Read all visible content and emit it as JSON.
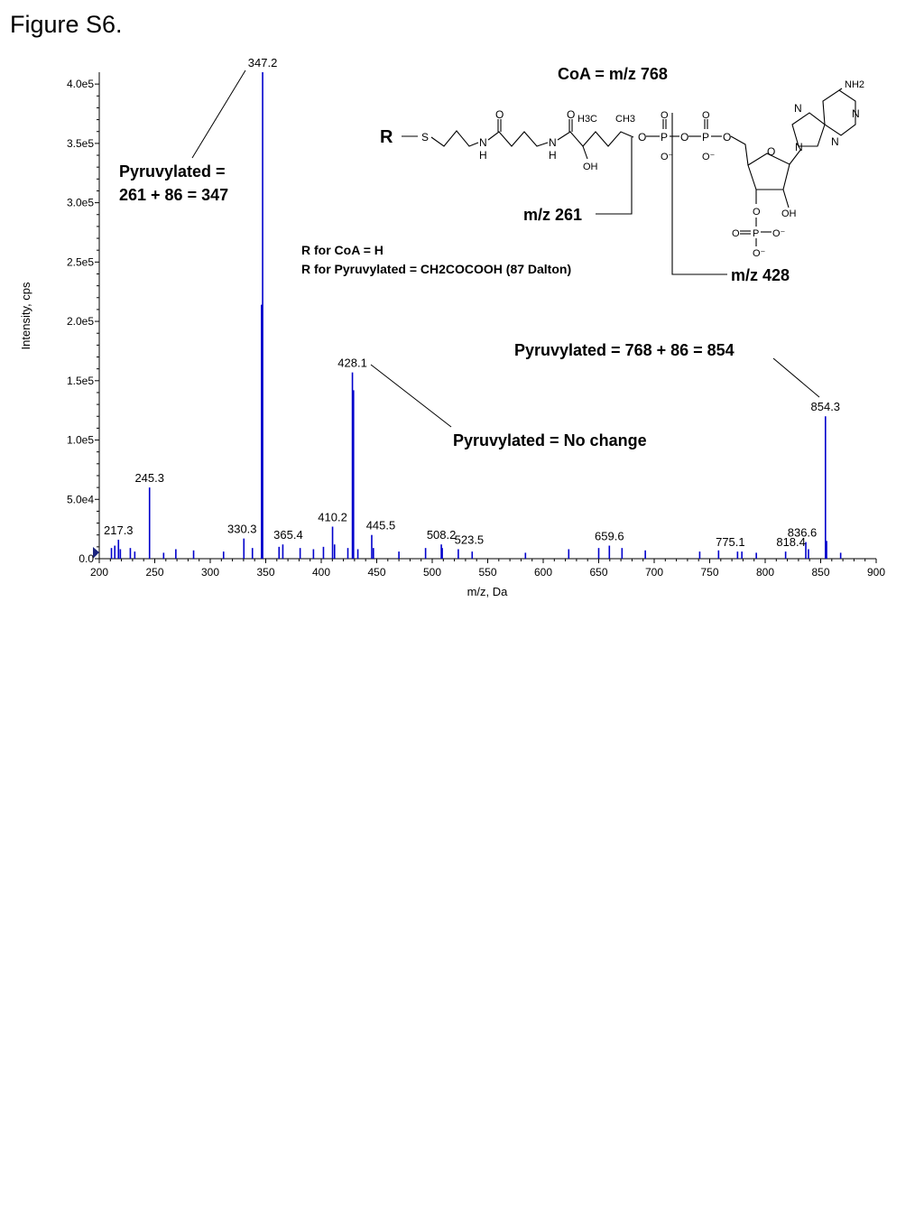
{
  "figure_label": "Figure S6.",
  "chart_data": {
    "type": "bar",
    "xlabel": "m/z, Da",
    "ylabel": "Intensity, cps",
    "xlim": [
      200,
      900
    ],
    "ylim": [
      0,
      410000
    ],
    "x_ticks": [
      "200",
      "250",
      "300",
      "350",
      "400",
      "450",
      "500",
      "550",
      "600",
      "650",
      "700",
      "750",
      "800",
      "850",
      "900"
    ],
    "y_ticks": [
      {
        "value": 0,
        "label": "0.0"
      },
      {
        "value": 50000,
        "label": "5.0e4"
      },
      {
        "value": 100000,
        "label": "1.0e5"
      },
      {
        "value": 150000,
        "label": "1.5e5"
      },
      {
        "value": 200000,
        "label": "2.0e5"
      },
      {
        "value": 250000,
        "label": "2.5e5"
      },
      {
        "value": 300000,
        "label": "3.0e5"
      },
      {
        "value": 350000,
        "label": "3.5e5"
      },
      {
        "value": 400000,
        "label": "4.0e5"
      }
    ],
    "peaks": [
      {
        "mz": 347.2,
        "intensity": 410000,
        "label": "347.2"
      },
      {
        "mz": 346.2,
        "intensity": 214000,
        "label": ""
      },
      {
        "mz": 428.1,
        "intensity": 157000,
        "label": "428.1"
      },
      {
        "mz": 429.1,
        "intensity": 142000,
        "label": ""
      },
      {
        "mz": 854.3,
        "intensity": 120000,
        "label": "854.3"
      },
      {
        "mz": 245.3,
        "intensity": 60000,
        "label": "245.3"
      },
      {
        "mz": 410.2,
        "intensity": 27000,
        "label": "410.2"
      },
      {
        "mz": 445.5,
        "intensity": 20000,
        "label": "445.5"
      },
      {
        "mz": 330.3,
        "intensity": 17000,
        "label": "330.3"
      },
      {
        "mz": 217.3,
        "intensity": 16000,
        "label": "217.3"
      },
      {
        "mz": 365.4,
        "intensity": 12000,
        "label": "365.4"
      },
      {
        "mz": 508.2,
        "intensity": 12000,
        "label": "508.2"
      },
      {
        "mz": 523.5,
        "intensity": 8000,
        "label": "523.5"
      },
      {
        "mz": 659.6,
        "intensity": 11000,
        "label": "659.6"
      },
      {
        "mz": 775.1,
        "intensity": 6000,
        "label": "775.1"
      },
      {
        "mz": 818.4,
        "intensity": 6000,
        "label": "818.4"
      },
      {
        "mz": 836.6,
        "intensity": 14000,
        "label": "836.6"
      },
      {
        "mz": 855.3,
        "intensity": 15000,
        "label": ""
      },
      {
        "mz": 211,
        "intensity": 9000,
        "label": ""
      },
      {
        "mz": 214,
        "intensity": 11000,
        "label": ""
      },
      {
        "mz": 219,
        "intensity": 8000,
        "label": ""
      },
      {
        "mz": 228,
        "intensity": 9000,
        "label": ""
      },
      {
        "mz": 232,
        "intensity": 6000,
        "label": ""
      },
      {
        "mz": 258,
        "intensity": 5000,
        "label": ""
      },
      {
        "mz": 269,
        "intensity": 8000,
        "label": ""
      },
      {
        "mz": 285,
        "intensity": 7000,
        "label": ""
      },
      {
        "mz": 312,
        "intensity": 6000,
        "label": ""
      },
      {
        "mz": 338,
        "intensity": 9000,
        "label": ""
      },
      {
        "mz": 362,
        "intensity": 10000,
        "label": ""
      },
      {
        "mz": 381,
        "intensity": 9000,
        "label": ""
      },
      {
        "mz": 393,
        "intensity": 8000,
        "label": ""
      },
      {
        "mz": 402,
        "intensity": 10000,
        "label": ""
      },
      {
        "mz": 412,
        "intensity": 12000,
        "label": ""
      },
      {
        "mz": 424,
        "intensity": 9000,
        "label": ""
      },
      {
        "mz": 433,
        "intensity": 8000,
        "label": ""
      },
      {
        "mz": 447,
        "intensity": 9000,
        "label": ""
      },
      {
        "mz": 470,
        "intensity": 6000,
        "label": ""
      },
      {
        "mz": 494,
        "intensity": 9000,
        "label": ""
      },
      {
        "mz": 509,
        "intensity": 9000,
        "label": ""
      },
      {
        "mz": 536,
        "intensity": 6000,
        "label": ""
      },
      {
        "mz": 584,
        "intensity": 5000,
        "label": ""
      },
      {
        "mz": 623,
        "intensity": 8000,
        "label": ""
      },
      {
        "mz": 650,
        "intensity": 9000,
        "label": ""
      },
      {
        "mz": 671,
        "intensity": 9000,
        "label": ""
      },
      {
        "mz": 692,
        "intensity": 7000,
        "label": ""
      },
      {
        "mz": 741,
        "intensity": 6000,
        "label": ""
      },
      {
        "mz": 758,
        "intensity": 7000,
        "label": ""
      },
      {
        "mz": 779,
        "intensity": 6000,
        "label": ""
      },
      {
        "mz": 792,
        "intensity": 5000,
        "label": ""
      },
      {
        "mz": 839,
        "intensity": 8000,
        "label": ""
      },
      {
        "mz": 868,
        "intensity": 5000,
        "label": ""
      }
    ],
    "annotations": {
      "pyruvylated_347_line1": "Pyruvylated =",
      "pyruvylated_347_line2": "261 + 86 = 347",
      "r_coa": "R for CoA  = H",
      "r_pyruvylated": "R for Pyruvylated = CH2COCOOH (87 Dalton)",
      "pyruvylated_854": "Pyruvylated = 768 + 86 = 854",
      "pyruvylated_428": "Pyruvylated = No change"
    },
    "structure": {
      "title": "CoA  = m/z 768",
      "r_group": "R",
      "fragment_261": "m/z 261",
      "fragment_428": "m/z 428",
      "atoms": {
        "S": "S",
        "N": "N",
        "H": "H",
        "O": "O",
        "OH": "OH",
        "H3C": "H3C",
        "CH3": "CH3",
        "P": "P",
        "O_minus": "O⁻",
        "NH2": "NH2"
      }
    }
  }
}
